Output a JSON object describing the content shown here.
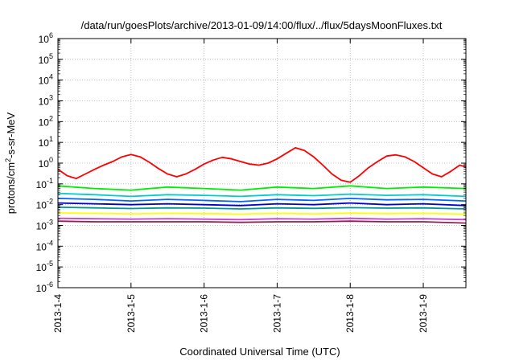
{
  "chart_data": {
    "type": "line",
    "title": "/data/run/goesPlots/archive/2013-01-09/14:00/flux/../flux/5daysMoonFluxes.txt",
    "xlabel": "Coordinated Universal Time (UTC)",
    "ylabel": "protons/cm2-s-sr-MeV",
    "ylabel_parts": {
      "pre": "protons/cm",
      "sup": "2",
      "post": "-s-sr-MeV"
    },
    "yscale": "log",
    "ylim": [
      1e-06,
      1000000.0
    ],
    "y_ticks": [
      {
        "base": "10",
        "exp": "-6",
        "value": 1e-06
      },
      {
        "base": "10",
        "exp": "-5",
        "value": 1e-05
      },
      {
        "base": "10",
        "exp": "-4",
        "value": 0.0001
      },
      {
        "base": "10",
        "exp": "-3",
        "value": 0.001
      },
      {
        "base": "10",
        "exp": "-2",
        "value": 0.01
      },
      {
        "base": "10",
        "exp": "-1",
        "value": 0.1
      },
      {
        "base": "10",
        "exp": "0",
        "value": 1
      },
      {
        "base": "10",
        "exp": "1",
        "value": 10
      },
      {
        "base": "10",
        "exp": "2",
        "value": 100
      },
      {
        "base": "10",
        "exp": "3",
        "value": 1000
      },
      {
        "base": "10",
        "exp": "4",
        "value": 10000
      },
      {
        "base": "10",
        "exp": "5",
        "value": 100000
      },
      {
        "base": "10",
        "exp": "6",
        "value": 1000000
      }
    ],
    "x_ticks": [
      "2013-1-4",
      "2013-1-5",
      "2013-1-6",
      "2013-1-7",
      "2013-1-8",
      "2013-1-9"
    ],
    "xlim": [
      "2013-01-04T00:00",
      "2013-01-09T14:00"
    ],
    "grid": true,
    "series": [
      {
        "color": "#ff0000",
        "x": [
          "2013-01-04T00:00",
          "2013-01-04T03:00",
          "2013-01-04T06:00",
          "2013-01-04T09:00",
          "2013-01-04T12:00",
          "2013-01-04T15:00",
          "2013-01-04T18:00",
          "2013-01-04T21:00",
          "2013-01-05T00:00",
          "2013-01-05T03:00",
          "2013-01-05T06:00",
          "2013-01-05T09:00",
          "2013-01-05T12:00",
          "2013-01-05T15:00",
          "2013-01-05T18:00",
          "2013-01-05T21:00",
          "2013-01-06T00:00",
          "2013-01-06T03:00",
          "2013-01-06T06:00",
          "2013-01-06T09:00",
          "2013-01-06T12:00",
          "2013-01-06T15:00",
          "2013-01-06T18:00",
          "2013-01-06T21:00",
          "2013-01-07T00:00",
          "2013-01-07T03:00",
          "2013-01-07T06:00",
          "2013-01-07T09:00",
          "2013-01-07T12:00",
          "2013-01-07T15:00",
          "2013-01-07T18:00",
          "2013-01-07T21:00",
          "2013-01-08T00:00",
          "2013-01-08T03:00",
          "2013-01-08T06:00",
          "2013-01-08T09:00",
          "2013-01-08T12:00",
          "2013-01-08T15:00",
          "2013-01-08T18:00",
          "2013-01-08T21:00",
          "2013-01-09T00:00",
          "2013-01-09T03:00",
          "2013-01-09T06:00",
          "2013-01-09T09:00",
          "2013-01-09T12:00",
          "2013-01-09T14:00"
        ],
        "y": [
          0.5,
          0.25,
          0.18,
          0.3,
          0.5,
          0.8,
          1.2,
          2.0,
          2.6,
          2.0,
          1.1,
          0.55,
          0.3,
          0.22,
          0.3,
          0.5,
          0.9,
          1.4,
          1.9,
          1.6,
          1.2,
          0.9,
          0.8,
          1.0,
          1.6,
          3.0,
          5.5,
          4.0,
          2.0,
          0.8,
          0.3,
          0.15,
          0.12,
          0.25,
          0.6,
          1.2,
          2.2,
          2.5,
          2.0,
          1.2,
          0.6,
          0.3,
          0.22,
          0.4,
          0.8,
          0.65
        ]
      },
      {
        "color": "#00ee00",
        "x": [
          "2013-01-04T00:00",
          "2013-01-04T12:00",
          "2013-01-05T00:00",
          "2013-01-05T12:00",
          "2013-01-06T00:00",
          "2013-01-06T12:00",
          "2013-01-07T00:00",
          "2013-01-07T12:00",
          "2013-01-08T00:00",
          "2013-01-08T12:00",
          "2013-01-09T00:00",
          "2013-01-09T14:00"
        ],
        "y": [
          0.08,
          0.06,
          0.05,
          0.07,
          0.06,
          0.05,
          0.07,
          0.06,
          0.08,
          0.06,
          0.07,
          0.06
        ]
      },
      {
        "color": "#00cccc",
        "x": [
          "2013-01-04T00:00",
          "2013-01-04T12:00",
          "2013-01-05T00:00",
          "2013-01-05T12:00",
          "2013-01-06T00:00",
          "2013-01-06T12:00",
          "2013-01-07T00:00",
          "2013-01-07T12:00",
          "2013-01-08T00:00",
          "2013-01-08T12:00",
          "2013-01-09T00:00",
          "2013-01-09T14:00"
        ],
        "y": [
          0.035,
          0.03,
          0.025,
          0.03,
          0.028,
          0.025,
          0.03,
          0.027,
          0.032,
          0.028,
          0.03,
          0.025
        ]
      },
      {
        "color": "#0066ff",
        "x": [
          "2013-01-04T00:00",
          "2013-01-04T12:00",
          "2013-01-05T00:00",
          "2013-01-05T12:00",
          "2013-01-06T00:00",
          "2013-01-06T12:00",
          "2013-01-07T00:00",
          "2013-01-07T12:00",
          "2013-01-08T00:00",
          "2013-01-08T12:00",
          "2013-01-09T00:00",
          "2013-01-09T14:00"
        ],
        "y": [
          0.02,
          0.018,
          0.015,
          0.018,
          0.016,
          0.014,
          0.018,
          0.016,
          0.02,
          0.017,
          0.018,
          0.015
        ]
      },
      {
        "color": "#0000cc",
        "x": [
          "2013-01-04T00:00",
          "2013-01-04T12:00",
          "2013-01-05T00:00",
          "2013-01-05T12:00",
          "2013-01-06T00:00",
          "2013-01-06T12:00",
          "2013-01-07T00:00",
          "2013-01-07T12:00",
          "2013-01-08T00:00",
          "2013-01-08T12:00",
          "2013-01-09T00:00",
          "2013-01-09T14:00"
        ],
        "y": [
          0.012,
          0.011,
          0.01,
          0.011,
          0.01,
          0.009,
          0.011,
          0.01,
          0.012,
          0.01,
          0.011,
          0.009
        ]
      },
      {
        "color": "#009999",
        "x": [
          "2013-01-04T00:00",
          "2013-01-04T12:00",
          "2013-01-05T00:00",
          "2013-01-05T12:00",
          "2013-01-06T00:00",
          "2013-01-06T12:00",
          "2013-01-07T00:00",
          "2013-01-07T12:00",
          "2013-01-08T00:00",
          "2013-01-08T12:00",
          "2013-01-09T00:00",
          "2013-01-09T14:00"
        ],
        "y": [
          0.0075,
          0.007,
          0.0065,
          0.007,
          0.0068,
          0.0062,
          0.007,
          0.0066,
          0.0072,
          0.0068,
          0.007,
          0.0062
        ]
      },
      {
        "color": "#ffff00",
        "x": [
          "2013-01-04T00:00",
          "2013-01-04T12:00",
          "2013-01-05T00:00",
          "2013-01-05T12:00",
          "2013-01-06T00:00",
          "2013-01-06T12:00",
          "2013-01-07T00:00",
          "2013-01-07T12:00",
          "2013-01-08T00:00",
          "2013-01-08T12:00",
          "2013-01-09T00:00",
          "2013-01-09T14:00"
        ],
        "y": [
          0.004,
          0.0038,
          0.0036,
          0.0038,
          0.0037,
          0.0035,
          0.0038,
          0.0036,
          0.0039,
          0.0037,
          0.0038,
          0.0035
        ]
      },
      {
        "color": "#cc44cc",
        "x": [
          "2013-01-04T00:00",
          "2013-01-04T12:00",
          "2013-01-05T00:00",
          "2013-01-05T12:00",
          "2013-01-06T00:00",
          "2013-01-06T12:00",
          "2013-01-07T00:00",
          "2013-01-07T12:00",
          "2013-01-08T00:00",
          "2013-01-08T12:00",
          "2013-01-09T00:00",
          "2013-01-09T14:00"
        ],
        "y": [
          0.0022,
          0.0021,
          0.002,
          0.0021,
          0.002,
          0.0019,
          0.0021,
          0.002,
          0.0022,
          0.002,
          0.0021,
          0.0019
        ]
      },
      {
        "color": "#8b2252",
        "x": [
          "2013-01-04T00:00",
          "2013-01-04T12:00",
          "2013-01-05T00:00",
          "2013-01-05T12:00",
          "2013-01-06T00:00",
          "2013-01-06T12:00",
          "2013-01-07T00:00",
          "2013-01-07T12:00",
          "2013-01-08T00:00",
          "2013-01-08T12:00",
          "2013-01-09T00:00",
          "2013-01-09T14:00"
        ],
        "y": [
          0.0016,
          0.0015,
          0.0015,
          0.0015,
          0.0015,
          0.0014,
          0.0015,
          0.0015,
          0.0016,
          0.0015,
          0.0015,
          0.0013
        ]
      }
    ]
  }
}
